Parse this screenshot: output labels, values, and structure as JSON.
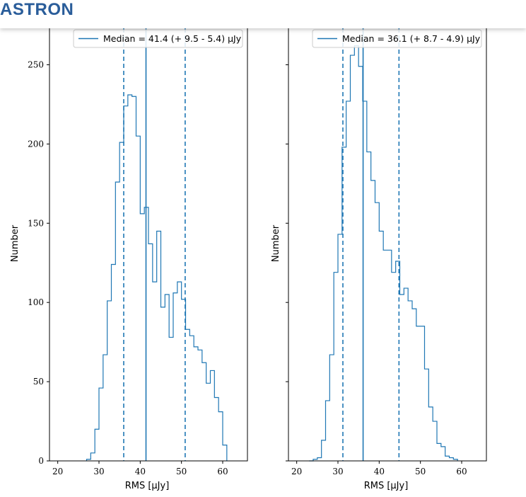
{
  "header": {
    "logo_text": "ASTRON"
  },
  "chart_data": [
    {
      "type": "histogram",
      "xlabel": "RMS [μJy]",
      "ylabel": "Number",
      "xlim": [
        18,
        66
      ],
      "ylim": [
        0,
        273
      ],
      "xticks": [
        20,
        30,
        40,
        50,
        60
      ],
      "yticks": [
        0,
        50,
        100,
        150,
        200,
        250
      ],
      "color": "#1f77b4",
      "legend": "Median = 41.4 (+ 9.5 - 5.4) μJy",
      "median": 41.4,
      "lower": 36.0,
      "upper": 50.9,
      "bin_start": 27,
      "bin_width": 1,
      "counts": [
        1,
        5,
        20,
        46,
        67,
        101,
        124,
        176,
        201,
        224,
        231,
        230,
        205,
        156,
        160,
        137,
        113,
        145,
        97,
        105,
        78,
        106,
        113,
        102,
        83,
        79,
        72,
        70,
        62,
        49,
        57,
        40,
        31,
        10
      ]
    },
    {
      "type": "histogram",
      "xlabel": "RMS [μJy]",
      "ylabel": "Number",
      "xlim": [
        18,
        66
      ],
      "ylim": [
        0,
        273
      ],
      "xticks": [
        20,
        30,
        40,
        50,
        60
      ],
      "yticks": [
        0,
        50,
        100,
        150,
        200,
        250
      ],
      "color": "#1f77b4",
      "legend": "Median = 36.1 (+ 8.7 - 4.9) μJy",
      "median": 36.1,
      "lower": 31.2,
      "upper": 44.8,
      "bin_start": 23,
      "bin_width": 1,
      "counts": [
        0,
        1,
        2,
        13,
        38,
        67,
        119,
        143,
        198,
        227,
        256,
        262,
        249,
        227,
        195,
        177,
        163,
        145,
        133,
        133,
        119,
        126,
        105,
        109,
        101,
        96,
        85,
        85,
        58,
        34,
        25,
        11,
        9,
        3,
        2,
        1
      ]
    }
  ]
}
